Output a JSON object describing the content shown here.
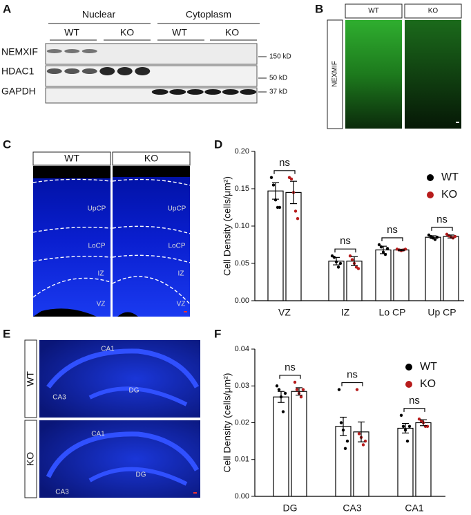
{
  "panel_labels": [
    "A",
    "B",
    "C",
    "D",
    "E",
    "F"
  ],
  "blot": {
    "groups": [
      "Nuclear",
      "Cytoplasm"
    ],
    "genotypes": [
      "WT",
      "KO",
      "WT",
      "KO"
    ],
    "rows": [
      "NEMXIF",
      "HDAC1",
      "GAPDH"
    ],
    "markers": [
      "150 kD",
      "50 kD",
      "37 kD"
    ]
  },
  "panel_b": {
    "columns": [
      "WT",
      "KO"
    ],
    "row_label": "NEXMIF"
  },
  "panel_c": {
    "columns": [
      "WT",
      "KO"
    ],
    "regions": [
      "UpCP",
      "LoCP",
      "IZ",
      "VZ"
    ]
  },
  "panel_e": {
    "rows": [
      "WT",
      "KO"
    ],
    "regions": [
      "CA1",
      "CA3",
      "DG"
    ]
  },
  "chart_data": [
    {
      "type": "bar",
      "y_label": "Cell Density (cells/μm²)",
      "categories": [
        "VZ",
        "IZ",
        "Lo CP",
        "Up CP"
      ],
      "series": [
        {
          "name": "WT",
          "color": "#000000",
          "bar_fill": "#ffffff",
          "values": [
            0.147,
            0.053,
            0.068,
            0.085
          ],
          "errors": [
            0.011,
            0.005,
            0.005,
            0.002
          ],
          "points": [
            [
              0.165,
              0.155,
              0.135,
              0.125,
              0.125
            ],
            [
              0.06,
              0.058,
              0.052,
              0.045,
              0.05
            ],
            [
              0.075,
              0.072,
              0.065,
              0.062,
              0.07
            ],
            [
              0.088,
              0.086,
              0.084,
              0.082,
              0.085
            ]
          ]
        },
        {
          "name": "KO",
          "color": "#b71c1c",
          "bar_fill": "#ffffff",
          "values": [
            0.145,
            0.053,
            0.068,
            0.086
          ],
          "errors": [
            0.015,
            0.006,
            0.001,
            0.002
          ],
          "points": [
            [
              0.165,
              0.163,
              0.145,
              0.12,
              0.11
            ],
            [
              0.06,
              0.055,
              0.05,
              0.045,
              0.043
            ],
            [
              0.069,
              0.068,
              0.067,
              0.068,
              0.069
            ],
            [
              0.089,
              0.087,
              0.085,
              0.084,
              0.086
            ]
          ]
        }
      ],
      "annotations": [
        "ns",
        "ns",
        "ns",
        "ns"
      ],
      "ylim": [
        0,
        0.2
      ],
      "yticks": [
        {
          "value": 0,
          "label": "0.00"
        },
        {
          "value": 0.05,
          "label": "0.05"
        },
        {
          "value": 0.1,
          "label": "0.10"
        },
        {
          "value": 0.15,
          "label": "0.15"
        },
        {
          "value": 0.2,
          "label": "0.20"
        }
      ],
      "legend": "top-right"
    },
    {
      "type": "bar",
      "y_label": "Cell Density (cells/μm²)",
      "categories": [
        "DG",
        "CA3",
        "CA1"
      ],
      "series": [
        {
          "name": "WT",
          "color": "#000000",
          "bar_fill": "#ffffff",
          "values": [
            0.027,
            0.019,
            0.0185
          ],
          "errors": [
            0.0015,
            0.0025,
            0.0013
          ],
          "points": [
            [
              0.03,
              0.029,
              0.027,
              0.023,
              0.028
            ],
            [
              0.029,
              0.02,
              0.018,
              0.013,
              0.015
            ],
            [
              0.022,
              0.019,
              0.018,
              0.015,
              0.019
            ]
          ]
        },
        {
          "name": "KO",
          "color": "#b71c1c",
          "bar_fill": "#ffffff",
          "values": [
            0.0285,
            0.0175,
            0.02
          ],
          "errors": [
            0.001,
            0.0027,
            0.0008
          ],
          "points": [
            [
              0.031,
              0.029,
              0.028,
              0.027,
              0.029
            ],
            [
              0.029,
              0.017,
              0.016,
              0.014,
              0.015
            ],
            [
              0.021,
              0.0205,
              0.02,
              0.019,
              0.019
            ]
          ]
        }
      ],
      "annotations": [
        "ns",
        "ns",
        "ns"
      ],
      "ylim": [
        0,
        0.04
      ],
      "yticks": [
        {
          "value": 0,
          "label": "0.00"
        },
        0.01,
        0.02,
        0.03,
        0.04
      ],
      "legend": "top-right"
    }
  ]
}
